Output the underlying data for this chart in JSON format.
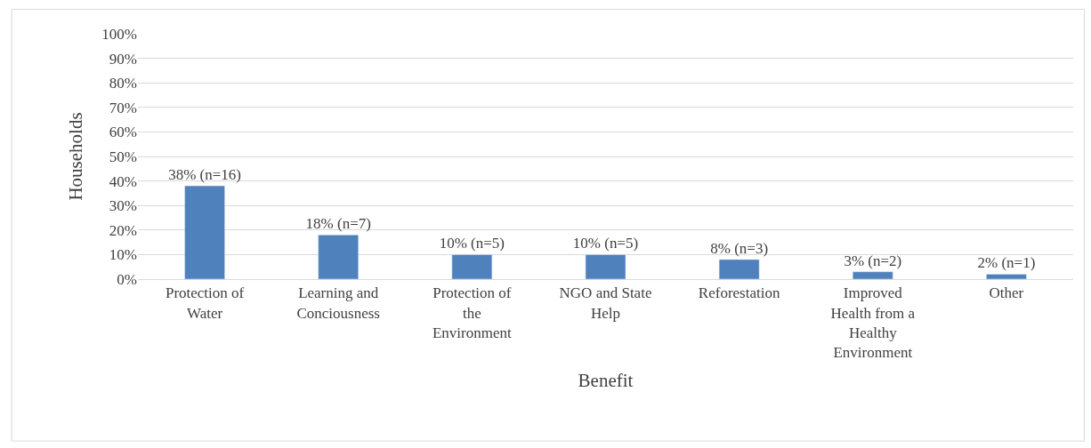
{
  "chart_data": {
    "type": "bar",
    "xlabel": "Benefit",
    "ylabel": "Households",
    "categories": [
      "Protection of Water",
      "Learning and Conciousness",
      "Protection of the Environment",
      "NGO and State Help",
      "Reforestation",
      "Improved Health from a Healthy Environment",
      "Other"
    ],
    "values": [
      38,
      18,
      10,
      10,
      8,
      3,
      2
    ],
    "value_labels": [
      "38% (n=16)",
      "18% (n=7)",
      "10% (n=5)",
      "10% (n=5)",
      "8% (n=3)",
      "3% (n=2)",
      "2% (n=1)"
    ],
    "color": "#4f81bd",
    "ylim": [
      0,
      100
    ],
    "yticks": [
      {
        "value": 0,
        "label": "0%"
      },
      {
        "value": 10,
        "label": "10%"
      },
      {
        "value": 20,
        "label": "20%"
      },
      {
        "value": 30,
        "label": "30%"
      },
      {
        "value": 40,
        "label": "40%"
      },
      {
        "value": 50,
        "label": "50%"
      },
      {
        "value": 60,
        "label": "60%"
      },
      {
        "value": 70,
        "label": "70%"
      },
      {
        "value": 80,
        "label": "80%"
      },
      {
        "value": 90,
        "label": "90%"
      },
      {
        "value": 100,
        "label": "100%"
      }
    ],
    "grid": "y"
  }
}
